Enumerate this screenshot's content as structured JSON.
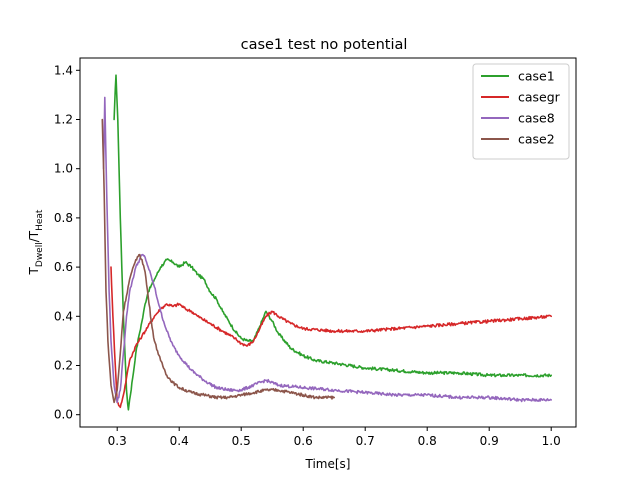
{
  "chart_data": {
    "type": "line",
    "title": "case1 test no potential",
    "xlabel": "Time[s]",
    "ylabel": {
      "base": "T",
      "sub1": "Dwell",
      "mid": "/T",
      "sub2": "Heat"
    },
    "xlim": [
      0.24,
      1.04
    ],
    "ylim": [
      -0.05,
      1.45
    ],
    "xticks": [
      0.3,
      0.4,
      0.5,
      0.6,
      0.7,
      0.8,
      0.9,
      1.0
    ],
    "xtick_labels": [
      "0.3",
      "0.4",
      "0.5",
      "0.6",
      "0.7",
      "0.8",
      "0.9",
      "1.0"
    ],
    "yticks": [
      0.0,
      0.2,
      0.4,
      0.6,
      0.8,
      1.0,
      1.2,
      1.4
    ],
    "ytick_labels": [
      "0.0",
      "0.2",
      "0.4",
      "0.6",
      "0.8",
      "1.0",
      "1.2",
      "1.4"
    ],
    "grid": false,
    "legend": {
      "position": "top-right"
    },
    "series": [
      {
        "name": "case1",
        "color": "#2ca02c",
        "x": [
          0.295,
          0.298,
          0.301,
          0.305,
          0.31,
          0.315,
          0.318,
          0.32,
          0.325,
          0.33,
          0.335,
          0.34,
          0.345,
          0.35,
          0.36,
          0.37,
          0.38,
          0.39,
          0.4,
          0.41,
          0.42,
          0.43,
          0.44,
          0.45,
          0.46,
          0.47,
          0.48,
          0.49,
          0.5,
          0.51,
          0.52,
          0.53,
          0.54,
          0.55,
          0.56,
          0.58,
          0.6,
          0.62,
          0.65,
          0.7,
          0.75,
          0.8,
          0.85,
          0.9,
          0.95,
          1.0
        ],
        "y": [
          1.2,
          1.38,
          1.2,
          0.8,
          0.4,
          0.1,
          0.02,
          0.06,
          0.15,
          0.25,
          0.32,
          0.38,
          0.45,
          0.5,
          0.55,
          0.6,
          0.63,
          0.62,
          0.6,
          0.62,
          0.6,
          0.57,
          0.55,
          0.5,
          0.47,
          0.42,
          0.38,
          0.34,
          0.31,
          0.3,
          0.3,
          0.36,
          0.42,
          0.38,
          0.33,
          0.27,
          0.24,
          0.22,
          0.21,
          0.19,
          0.18,
          0.17,
          0.17,
          0.16,
          0.16,
          0.16
        ]
      },
      {
        "name": "casegr",
        "color": "#d62728",
        "x": [
          0.29,
          0.293,
          0.297,
          0.3,
          0.305,
          0.31,
          0.315,
          0.32,
          0.33,
          0.34,
          0.35,
          0.36,
          0.37,
          0.38,
          0.39,
          0.4,
          0.41,
          0.42,
          0.43,
          0.45,
          0.47,
          0.49,
          0.5,
          0.51,
          0.52,
          0.53,
          0.54,
          0.55,
          0.56,
          0.58,
          0.6,
          0.65,
          0.7,
          0.75,
          0.8,
          0.85,
          0.9,
          0.95,
          1.0
        ],
        "y": [
          0.6,
          0.4,
          0.2,
          0.05,
          0.03,
          0.08,
          0.15,
          0.22,
          0.28,
          0.32,
          0.36,
          0.4,
          0.43,
          0.45,
          0.44,
          0.45,
          0.43,
          0.42,
          0.4,
          0.37,
          0.34,
          0.31,
          0.29,
          0.28,
          0.3,
          0.35,
          0.4,
          0.42,
          0.4,
          0.37,
          0.35,
          0.34,
          0.34,
          0.35,
          0.36,
          0.37,
          0.38,
          0.39,
          0.4
        ]
      },
      {
        "name": "case8",
        "color": "#9467bd",
        "x": [
          0.278,
          0.28,
          0.283,
          0.287,
          0.29,
          0.295,
          0.3,
          0.305,
          0.31,
          0.315,
          0.32,
          0.33,
          0.34,
          0.345,
          0.35,
          0.36,
          0.37,
          0.38,
          0.39,
          0.4,
          0.42,
          0.44,
          0.46,
          0.48,
          0.5,
          0.52,
          0.54,
          0.56,
          0.6,
          0.65,
          0.7,
          0.75,
          0.8,
          0.85,
          0.9,
          0.95,
          1.0
        ],
        "y": [
          1.0,
          1.29,
          0.9,
          0.5,
          0.3,
          0.12,
          0.05,
          0.1,
          0.25,
          0.4,
          0.5,
          0.6,
          0.65,
          0.64,
          0.6,
          0.52,
          0.42,
          0.34,
          0.28,
          0.24,
          0.18,
          0.14,
          0.11,
          0.1,
          0.1,
          0.12,
          0.14,
          0.12,
          0.11,
          0.1,
          0.09,
          0.08,
          0.08,
          0.07,
          0.07,
          0.06,
          0.06
        ]
      },
      {
        "name": "case2",
        "color": "#8c564b",
        "x": [
          0.276,
          0.279,
          0.282,
          0.285,
          0.29,
          0.295,
          0.3,
          0.305,
          0.31,
          0.32,
          0.33,
          0.335,
          0.34,
          0.345,
          0.35,
          0.355,
          0.36,
          0.37,
          0.38,
          0.39,
          0.4,
          0.42,
          0.44,
          0.46,
          0.48,
          0.5,
          0.52,
          0.54,
          0.56,
          0.58,
          0.6,
          0.62,
          0.65
        ],
        "y": [
          1.2,
          0.9,
          0.5,
          0.3,
          0.12,
          0.05,
          0.1,
          0.25,
          0.42,
          0.55,
          0.63,
          0.65,
          0.63,
          0.58,
          0.48,
          0.38,
          0.3,
          0.22,
          0.16,
          0.13,
          0.11,
          0.09,
          0.08,
          0.07,
          0.07,
          0.08,
          0.09,
          0.1,
          0.1,
          0.09,
          0.08,
          0.07,
          0.07
        ]
      }
    ]
  }
}
